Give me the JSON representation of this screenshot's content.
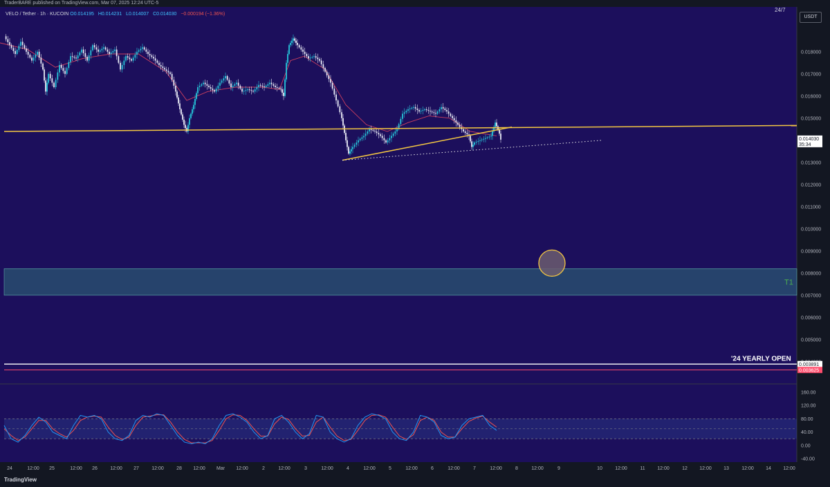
{
  "header": {
    "publisher": "TraderBARE published on TradingView.com, Mar 07, 2025 12:24 UTC-5"
  },
  "legend": {
    "symbol": "VELO / Tether · 1h · KUCOIN",
    "open": "O0.014195",
    "high": "H0.014231",
    "low": "L0.014007",
    "close": "C0.014030",
    "change": "−0.000194 (−1.36%)"
  },
  "currency_button": "USDT",
  "top_right_clip": "24/7",
  "footer": {
    "brand": "TradingView",
    "logo_icon": "tradingview-logo-icon"
  },
  "colors": {
    "background": "#1c0f5c",
    "trendline": "#f5c842",
    "stoch_k": "#2196f3",
    "stoch_d": "#ef5350",
    "zone": "#2f6f7a",
    "zone_label": "#4caf50",
    "circle": "#f5c842",
    "yearly_line": "#ffffff",
    "red_line": "#ff4d6d"
  },
  "chart_data": [
    {
      "type": "candlestick",
      "x_ticks": [
        "24",
        "12:00",
        "25",
        "12:00",
        "26",
        "12:00",
        "27",
        "12:00",
        "28",
        "12:00",
        "Mar",
        "12:00",
        "2",
        "12:00",
        "3",
        "12:00",
        "4",
        "12:00",
        "5",
        "12:00",
        "6",
        "12:00",
        "7",
        "12:00",
        "8",
        "12:00",
        "9",
        "10",
        "12:00",
        "11",
        "12:00",
        "12",
        "12:00",
        "13",
        "12:00",
        "14",
        "12:00"
      ],
      "y_ticks": [
        "0.018000",
        "0.017000",
        "0.016000",
        "0.015000",
        "0.014000",
        "0.013000",
        "0.012000",
        "0.011000",
        "0.010000",
        "0.009000",
        "0.008000",
        "0.007000",
        "0.006000",
        "0.005000",
        "0.004000"
      ],
      "ylim": [
        0.0034,
        0.0194
      ],
      "price_path": [
        [
          0,
          0.0187
        ],
        [
          8,
          0.0183
        ],
        [
          16,
          0.0179
        ],
        [
          24,
          0.01845
        ],
        [
          32,
          0.018
        ],
        [
          40,
          0.0176
        ],
        [
          48,
          0.018
        ],
        [
          56,
          0.0172
        ],
        [
          60,
          0.0162
        ],
        [
          64,
          0.017
        ],
        [
          72,
          0.0164
        ],
        [
          80,
          0.0174
        ],
        [
          88,
          0.017
        ],
        [
          96,
          0.0178
        ],
        [
          104,
          0.0177
        ],
        [
          112,
          0.0181
        ],
        [
          120,
          0.0176
        ],
        [
          128,
          0.0183
        ],
        [
          136,
          0.018
        ],
        [
          144,
          0.0182
        ],
        [
          152,
          0.0179
        ],
        [
          160,
          0.0181
        ],
        [
          168,
          0.0172
        ],
        [
          176,
          0.0178
        ],
        [
          184,
          0.0176
        ],
        [
          192,
          0.018
        ],
        [
          200,
          0.0182
        ],
        [
          208,
          0.0179
        ],
        [
          216,
          0.0177
        ],
        [
          224,
          0.0174
        ],
        [
          232,
          0.0172
        ],
        [
          240,
          0.017
        ],
        [
          248,
          0.0162
        ],
        [
          254,
          0.0154
        ],
        [
          260,
          0.0147
        ],
        [
          264,
          0.0144
        ],
        [
          268,
          0.015
        ],
        [
          274,
          0.0156
        ],
        [
          280,
          0.0164
        ],
        [
          288,
          0.0166
        ],
        [
          296,
          0.0164
        ],
        [
          304,
          0.0162
        ],
        [
          312,
          0.0166
        ],
        [
          320,
          0.0169
        ],
        [
          328,
          0.0164
        ],
        [
          336,
          0.0166
        ],
        [
          344,
          0.0162
        ],
        [
          352,
          0.0163
        ],
        [
          360,
          0.0162
        ],
        [
          368,
          0.0165
        ],
        [
          376,
          0.0164
        ],
        [
          384,
          0.0166
        ],
        [
          392,
          0.0164
        ],
        [
          400,
          0.0163
        ],
        [
          404,
          0.016
        ],
        [
          408,
          0.0175
        ],
        [
          412,
          0.0183
        ],
        [
          418,
          0.0186
        ],
        [
          424,
          0.0183
        ],
        [
          432,
          0.018
        ],
        [
          440,
          0.0177
        ],
        [
          448,
          0.0178
        ],
        [
          456,
          0.0176
        ],
        [
          464,
          0.0171
        ],
        [
          472,
          0.0166
        ],
        [
          480,
          0.0158
        ],
        [
          488,
          0.015
        ],
        [
          494,
          0.014
        ],
        [
          498,
          0.0134
        ],
        [
          504,
          0.0137
        ],
        [
          512,
          0.014
        ],
        [
          520,
          0.0142
        ],
        [
          528,
          0.0145
        ],
        [
          536,
          0.0144
        ],
        [
          544,
          0.0142
        ],
        [
          552,
          0.0139
        ],
        [
          560,
          0.0142
        ],
        [
          568,
          0.0145
        ],
        [
          576,
          0.0152
        ],
        [
          584,
          0.0154
        ],
        [
          592,
          0.0155
        ],
        [
          600,
          0.0153
        ],
        [
          608,
          0.0154
        ],
        [
          616,
          0.0153
        ],
        [
          624,
          0.0152
        ],
        [
          632,
          0.0155
        ],
        [
          640,
          0.0153
        ],
        [
          648,
          0.015
        ],
        [
          656,
          0.0147
        ],
        [
          664,
          0.0144
        ],
        [
          672,
          0.0142
        ],
        [
          676,
          0.0137
        ],
        [
          680,
          0.0139
        ],
        [
          688,
          0.014
        ],
        [
          696,
          0.0141
        ],
        [
          704,
          0.0142
        ],
        [
          710,
          0.0148
        ],
        [
          716,
          0.0143
        ],
        [
          718,
          0.01403
        ]
      ],
      "ema_path": [
        [
          0,
          0.0184
        ],
        [
          40,
          0.0181
        ],
        [
          80,
          0.0173
        ],
        [
          120,
          0.0177
        ],
        [
          160,
          0.0179
        ],
        [
          200,
          0.0179
        ],
        [
          240,
          0.0171
        ],
        [
          270,
          0.0158
        ],
        [
          300,
          0.0162
        ],
        [
          340,
          0.0164
        ],
        [
          380,
          0.0164
        ],
        [
          404,
          0.0163
        ],
        [
          420,
          0.0176
        ],
        [
          440,
          0.0178
        ],
        [
          470,
          0.0172
        ],
        [
          500,
          0.0156
        ],
        [
          530,
          0.0147
        ],
        [
          560,
          0.0144
        ],
        [
          590,
          0.0148
        ],
        [
          620,
          0.0151
        ],
        [
          650,
          0.015
        ],
        [
          680,
          0.0144
        ],
        [
          718,
          0.0142
        ]
      ],
      "trendlines": [
        {
          "from": [
            6,
            0.0144
          ],
          "to": [
            1152,
            0.01467
          ],
          "style": "solid"
        },
        {
          "from": [
            495,
            0.0131
          ],
          "to": [
            740,
            0.0146
          ],
          "style": "solid"
        },
        {
          "from": [
            495,
            0.0131
          ],
          "to": [
            870,
            0.014
          ],
          "style": "dotted"
        }
      ],
      "zone": {
        "ymin": 0.007,
        "ymax": 0.0082,
        "label": "T1"
      },
      "circle_target": {
        "x": 798,
        "y": 0.00845
      },
      "yearly_open": {
        "label": "'24 YEARLY OPEN",
        "value": 0.003891
      },
      "red_level": {
        "value": 0.003625
      },
      "price_labels": [
        {
          "value": "0.014030",
          "sub": "35:34"
        },
        {
          "value": "0.003891"
        },
        {
          "value": "0.003625"
        }
      ]
    },
    {
      "type": "line",
      "indicator": "stochastic",
      "y_ticks": [
        "160.00",
        "120.00",
        "80.00",
        "40.00",
        "0.00",
        "-40.00"
      ],
      "ylim": [
        -50,
        170
      ],
      "bands": [
        20,
        50,
        80
      ],
      "k_values": [
        60,
        20,
        10,
        30,
        60,
        85,
        70,
        40,
        30,
        20,
        60,
        90,
        85,
        90,
        80,
        40,
        20,
        15,
        30,
        75,
        90,
        85,
        95,
        90,
        60,
        30,
        10,
        5,
        10,
        5,
        20,
        60,
        90,
        95,
        85,
        70,
        40,
        20,
        30,
        80,
        90,
        70,
        40,
        20,
        35,
        90,
        85,
        40,
        20,
        10,
        20,
        60,
        85,
        95,
        90,
        80,
        40,
        20,
        15,
        40,
        90,
        85,
        70,
        30,
        20,
        25,
        60,
        80,
        85,
        90,
        60,
        45
      ],
      "d_values": [
        50,
        30,
        15,
        25,
        50,
        75,
        75,
        50,
        35,
        25,
        45,
        75,
        85,
        88,
        85,
        55,
        30,
        18,
        25,
        60,
        85,
        88,
        92,
        92,
        70,
        40,
        18,
        8,
        8,
        8,
        15,
        45,
        80,
        92,
        90,
        75,
        50,
        28,
        28,
        65,
        85,
        78,
        50,
        28,
        30,
        70,
        85,
        55,
        28,
        15,
        18,
        45,
        75,
        90,
        92,
        85,
        55,
        28,
        18,
        32,
        75,
        85,
        75,
        40,
        25,
        25,
        50,
        72,
        82,
        88,
        70,
        55
      ]
    }
  ]
}
